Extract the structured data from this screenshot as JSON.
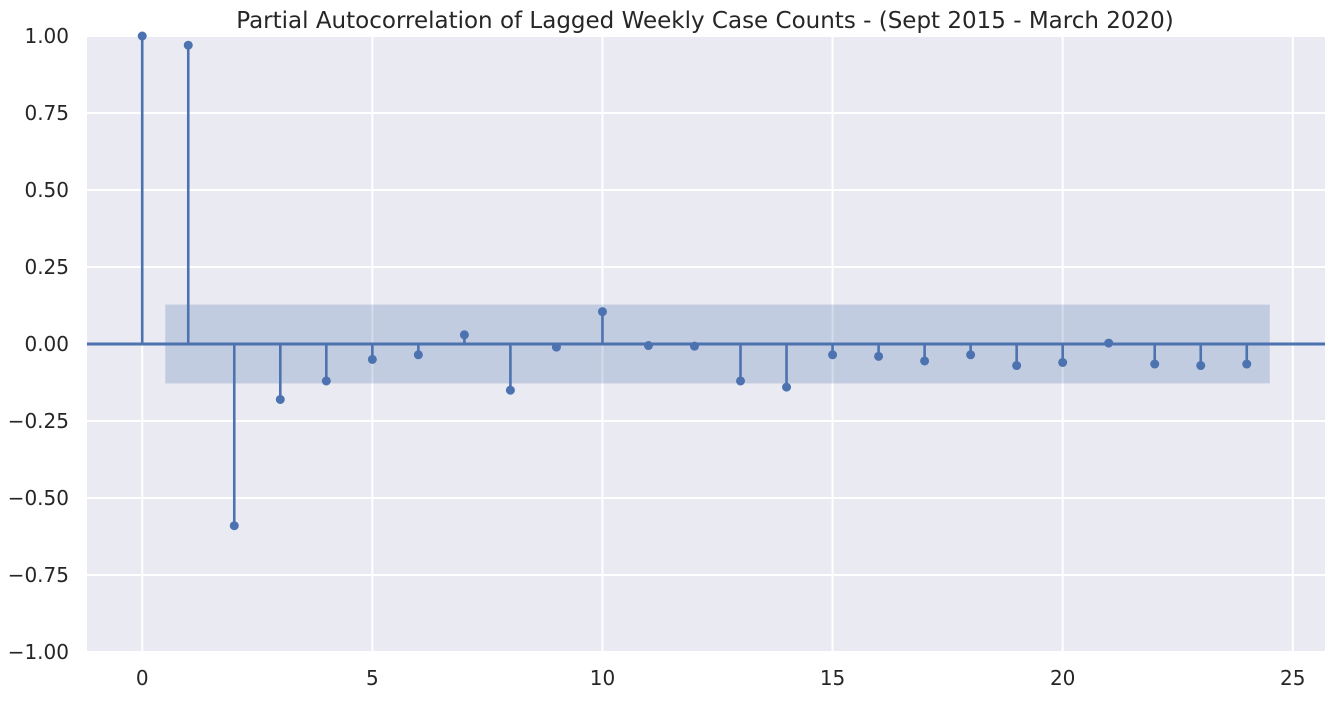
{
  "chart_data": {
    "type": "stem",
    "title": "Partial Autocorrelation of Lagged Weekly Case Counts - (Sept 2015 - March 2020)",
    "xlabel": "",
    "ylabel": "",
    "xlim": [
      -1.2,
      25.7
    ],
    "ylim": [
      -1.0,
      1.0
    ],
    "xticks": [
      0,
      5,
      10,
      15,
      20,
      25
    ],
    "xtick_labels": [
      "0",
      "5",
      "10",
      "15",
      "20",
      "25"
    ],
    "yticks": [
      1.0,
      0.75,
      0.5,
      0.25,
      0.0,
      -0.25,
      -0.5,
      -0.75,
      -1.0
    ],
    "ytick_labels": [
      "1.00",
      "0.75",
      "0.50",
      "0.25",
      "0.00",
      "−0.25",
      "−0.50",
      "−0.75",
      "−1.00"
    ],
    "grid": true,
    "confidence_band": {
      "x_start": 0.5,
      "x_end": 24.5,
      "upper": 0.128,
      "lower": -0.128
    },
    "lags": [
      0,
      1,
      2,
      3,
      4,
      5,
      6,
      7,
      8,
      9,
      10,
      11,
      12,
      13,
      14,
      15,
      16,
      17,
      18,
      19,
      20,
      21,
      22,
      23,
      24
    ],
    "values": [
      1.0,
      0.97,
      -0.59,
      -0.18,
      -0.12,
      -0.05,
      -0.035,
      0.03,
      -0.15,
      -0.01,
      0.105,
      -0.005,
      -0.007,
      -0.12,
      -0.14,
      -0.035,
      -0.04,
      -0.055,
      -0.035,
      -0.07,
      -0.06,
      0.003,
      -0.065,
      -0.07,
      -0.065
    ],
    "colors": {
      "stem": "#4c72b0",
      "band": "#4c72b0",
      "background": "#eaeaf2",
      "grid": "#ffffff"
    }
  }
}
